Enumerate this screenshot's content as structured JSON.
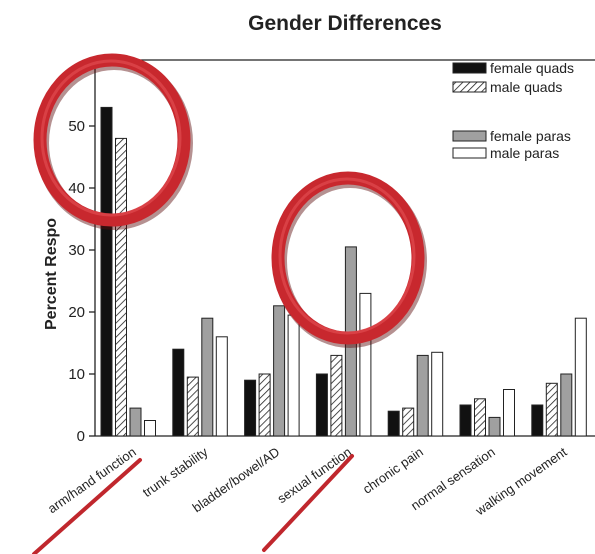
{
  "chart_data": {
    "type": "bar",
    "title": "Gender Differences",
    "ylabel": "Percent Respo",
    "xlabel": "",
    "ylim": [
      0,
      60
    ],
    "yticks": [
      0,
      10,
      20,
      30,
      40,
      50
    ],
    "grid": false,
    "legend_position": "top-right",
    "categories": [
      "arm/hand function",
      "trunk stability",
      "bladder/bowel/AD",
      "sexual function",
      "chronic pain",
      "normal sensation",
      "walking movement"
    ],
    "series": [
      {
        "name": "female quads",
        "color": "#111111",
        "pattern": "solid",
        "values": [
          53,
          14,
          9,
          10,
          4,
          5,
          5
        ]
      },
      {
        "name": "male quads",
        "color": "#ffffff",
        "pattern": "hatched",
        "values": [
          48,
          9.5,
          10,
          13,
          4.5,
          6,
          8.5
        ]
      },
      {
        "name": "female paras",
        "color": "#a0a0a0",
        "pattern": "solid",
        "values": [
          4.5,
          19,
          21,
          30.5,
          13,
          3,
          10
        ]
      },
      {
        "name": "male paras",
        "color": "#ffffff",
        "pattern": "solid",
        "values": [
          2.5,
          16,
          19.5,
          23,
          13.5,
          7.5,
          19
        ]
      }
    ],
    "annotations": [
      {
        "shape": "circle",
        "color": "#c0272d",
        "highlights": "arm/hand function"
      },
      {
        "shape": "circle",
        "color": "#c0272d",
        "highlights": "sexual function"
      },
      {
        "shape": "underline",
        "color": "#c0272d",
        "highlights": "arm/hand function"
      },
      {
        "shape": "underline",
        "color": "#c0272d",
        "highlights": "sexual function"
      }
    ]
  }
}
